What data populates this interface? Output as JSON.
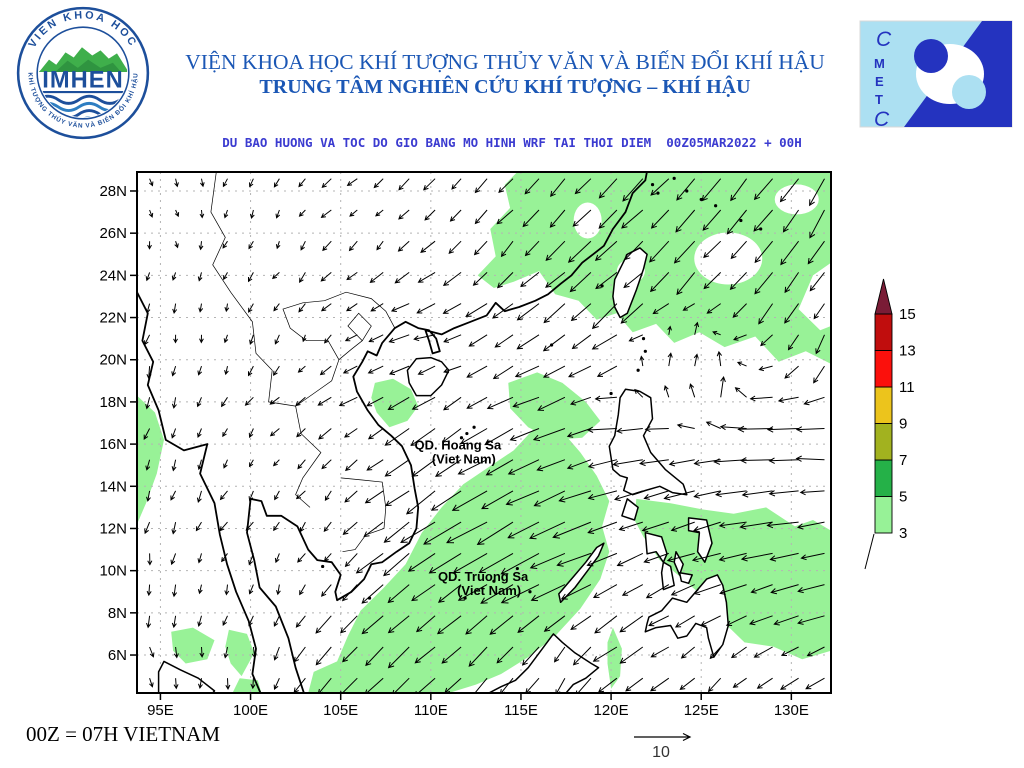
{
  "header": {
    "org_line1": "VIỆN KHOA HỌC KHÍ TƯỢNG THỦY VĂN VÀ BIẾN ĐỔI KHÍ HẬU",
    "org_line2": "TRUNG TÂM NGHIÊN CỨU KHÍ TƯỢNG – KHÍ HẬU",
    "title_color": "#1b57b5"
  },
  "imhen_logo": {
    "acronym": "IMHEN",
    "ring_text_top": "VIEN KHOA HOC",
    "ring_text_bottom": "KHÍ TƯỢNG THỦY VĂN VÀ BIẾN ĐỔI KHÍ HẬU"
  },
  "cmetc_logo": {
    "letters": [
      "C",
      "M",
      "E",
      "T",
      "C"
    ]
  },
  "subtitle": "DU BAO HUONG VA TOC DO GIO BANG MO HINH WRF TAI THOI DIEM  00Z05MAR2022 + 00H",
  "footer": {
    "note": "00Z = 07H VIETNAM",
    "scale_value": "10"
  },
  "chart_data": {
    "type": "map-vector-field",
    "description": "WRF model wind direction & speed forecast over Vietnam / South China Sea",
    "projection": {
      "lon_range": [
        93.7,
        132.2
      ],
      "lat_range": [
        4.2,
        28.9
      ]
    },
    "x_ticks": [
      {
        "lon": 95,
        "label": "95E"
      },
      {
        "lon": 100,
        "label": "100E"
      },
      {
        "lon": 105,
        "label": "105E"
      },
      {
        "lon": 110,
        "label": "110E"
      },
      {
        "lon": 115,
        "label": "115E"
      },
      {
        "lon": 120,
        "label": "120E"
      },
      {
        "lon": 125,
        "label": "125E"
      },
      {
        "lon": 130,
        "label": "130E"
      }
    ],
    "y_ticks": [
      {
        "lat": 28,
        "label": "28N"
      },
      {
        "lat": 26,
        "label": "26N"
      },
      {
        "lat": 24,
        "label": "24N"
      },
      {
        "lat": 22,
        "label": "22N"
      },
      {
        "lat": 20,
        "label": "20N"
      },
      {
        "lat": 18,
        "label": "18N"
      },
      {
        "lat": 16,
        "label": "16N"
      },
      {
        "lat": 14,
        "label": "14N"
      },
      {
        "lat": 12,
        "label": "12N"
      },
      {
        "lat": 10,
        "label": "10N"
      },
      {
        "lat": 8,
        "label": "8N"
      },
      {
        "lat": 6,
        "label": "6N"
      }
    ],
    "grid": "dashed",
    "colorbar": {
      "levels": [
        3,
        5,
        7,
        9,
        11,
        13,
        15
      ],
      "segment_colors_bottom_to_top": [
        "#97f297",
        "#25b148",
        "#a2b21f",
        "#ecc41c",
        "#fb100c",
        "#c00d0d"
      ],
      "over_arrow_color": "#7a1c36"
    },
    "shading_color": "#98f297",
    "annotations": [
      {
        "text": "QD. Hoang Sa",
        "sub": "(Viet Nam)",
        "lon": 111.5,
        "lat": 15.75
      },
      {
        "text": "QD. Truong Sa",
        "sub": "(Viet Nam)",
        "lon": 112.9,
        "lat": 9.5
      }
    ],
    "wind_scale_reference": "10",
    "shaded_regions": [
      {
        "name": "northeast-sea",
        "points": [
          [
            112.6,
            24.0
          ],
          [
            113.6,
            24.9
          ],
          [
            113.3,
            26.2
          ],
          [
            114.4,
            27.2
          ],
          [
            114.1,
            28.3
          ],
          [
            114.8,
            28.9
          ],
          [
            132.2,
            28.9
          ],
          [
            132.2,
            24.6
          ],
          [
            131.2,
            24.0
          ],
          [
            130.4,
            22.4
          ],
          [
            131.6,
            21.4
          ],
          [
            132.2,
            21.6
          ],
          [
            132.2,
            19.8
          ],
          [
            130.8,
            20.4
          ],
          [
            129.3,
            19.9
          ],
          [
            128.0,
            21.1
          ],
          [
            126.3,
            20.6
          ],
          [
            124.9,
            21.3
          ],
          [
            123.5,
            20.8
          ],
          [
            122.5,
            21.7
          ],
          [
            121.2,
            21.3
          ],
          [
            120.3,
            22.2
          ],
          [
            119.2,
            21.9
          ],
          [
            118.2,
            22.8
          ],
          [
            116.9,
            23.1
          ],
          [
            116.0,
            24.2
          ],
          [
            114.6,
            23.7
          ],
          [
            113.5,
            23.4
          ]
        ]
      },
      {
        "name": "southern-south-china-sea",
        "points": [
          [
            103.2,
            4.2
          ],
          [
            103.5,
            5.2
          ],
          [
            104.8,
            5.7
          ],
          [
            105.4,
            6.9
          ],
          [
            106.1,
            8.1
          ],
          [
            107.4,
            9.2
          ],
          [
            108.6,
            10.3
          ],
          [
            109.5,
            11.8
          ],
          [
            110.6,
            13.0
          ],
          [
            111.8,
            14.1
          ],
          [
            113.2,
            14.9
          ],
          [
            114.6,
            15.7
          ],
          [
            115.9,
            16.9
          ],
          [
            117.4,
            16.5
          ],
          [
            118.3,
            15.6
          ],
          [
            119.2,
            14.5
          ],
          [
            119.9,
            13.3
          ],
          [
            119.5,
            12.1
          ],
          [
            119.9,
            10.9
          ],
          [
            119.4,
            9.6
          ],
          [
            118.3,
            8.2
          ],
          [
            116.9,
            6.9
          ],
          [
            115.4,
            5.9
          ],
          [
            113.9,
            5.1
          ],
          [
            112.5,
            4.6
          ],
          [
            111.0,
            4.2
          ]
        ]
      },
      {
        "name": "ne-of-hoang-sa",
        "points": [
          [
            114.3,
            18.9
          ],
          [
            115.9,
            19.4
          ],
          [
            117.3,
            18.9
          ],
          [
            118.6,
            18.0
          ],
          [
            119.4,
            17.1
          ],
          [
            118.4,
            16.3
          ],
          [
            116.8,
            16.2
          ],
          [
            115.4,
            16.8
          ],
          [
            114.4,
            17.7
          ]
        ]
      },
      {
        "name": "central-vietnam-coast",
        "points": [
          [
            106.9,
            18.9
          ],
          [
            107.9,
            19.1
          ],
          [
            108.9,
            18.6
          ],
          [
            109.3,
            17.8
          ],
          [
            108.7,
            17.1
          ],
          [
            107.7,
            16.8
          ],
          [
            107.0,
            17.5
          ],
          [
            106.7,
            18.2
          ]
        ]
      },
      {
        "name": "west-edge",
        "points": [
          [
            93.7,
            18.3
          ],
          [
            94.7,
            17.5
          ],
          [
            95.2,
            16.2
          ],
          [
            94.8,
            14.6
          ],
          [
            94.2,
            13.2
          ],
          [
            93.7,
            12.2
          ]
        ]
      },
      {
        "name": "andaman-blob",
        "points": [
          [
            95.6,
            7.1
          ],
          [
            96.8,
            7.3
          ],
          [
            98.0,
            6.7
          ],
          [
            97.6,
            5.8
          ],
          [
            96.4,
            5.6
          ],
          [
            95.7,
            6.2
          ]
        ]
      },
      {
        "name": "peninsula-blob",
        "points": [
          [
            98.8,
            7.2
          ],
          [
            99.8,
            7.0
          ],
          [
            100.2,
            6.1
          ],
          [
            99.5,
            5.0
          ],
          [
            98.9,
            5.6
          ],
          [
            98.6,
            6.4
          ]
        ]
      },
      {
        "name": "bottom-blob",
        "points": [
          [
            99.0,
            4.2
          ],
          [
            99.4,
            4.9
          ],
          [
            100.4,
            4.8
          ],
          [
            100.6,
            4.2
          ]
        ]
      },
      {
        "name": "east-of-philippines",
        "points": [
          [
            121.4,
            13.4
          ],
          [
            123.3,
            13.2
          ],
          [
            125.1,
            12.9
          ],
          [
            126.8,
            12.7
          ],
          [
            128.6,
            13.0
          ],
          [
            130.2,
            12.1
          ],
          [
            131.2,
            12.4
          ],
          [
            132.2,
            11.9
          ],
          [
            132.2,
            6.2
          ],
          [
            130.6,
            5.8
          ],
          [
            129.0,
            6.4
          ],
          [
            127.4,
            6.6
          ],
          [
            126.2,
            7.6
          ],
          [
            125.2,
            8.7
          ],
          [
            124.0,
            9.6
          ],
          [
            122.7,
            10.5
          ],
          [
            121.8,
            11.6
          ],
          [
            121.3,
            12.4
          ]
        ]
      },
      {
        "name": "sulu-sliver",
        "points": [
          [
            120.1,
            7.3
          ],
          [
            120.6,
            6.3
          ],
          [
            120.5,
            5.0
          ],
          [
            120.0,
            4.4
          ],
          [
            119.8,
            5.6
          ],
          [
            119.8,
            6.6
          ]
        ]
      }
    ],
    "wind_control_points": [
      [
        96,
        27.5,
        300,
        1.5
      ],
      [
        101.5,
        26.5,
        250,
        1.5
      ],
      [
        107,
        27,
        230,
        2
      ],
      [
        112,
        27.5,
        230,
        3
      ],
      [
        117,
        28,
        228,
        4.5
      ],
      [
        122,
        28.2,
        225,
        5.5
      ],
      [
        127,
        28,
        232,
        6
      ],
      [
        131.5,
        27,
        240,
        6
      ],
      [
        114.5,
        25,
        230,
        4
      ],
      [
        119.5,
        25.5,
        225,
        6
      ],
      [
        124,
        24.5,
        228,
        6.5
      ],
      [
        129,
        23.5,
        235,
        5.5
      ],
      [
        131.8,
        21,
        250,
        4
      ],
      [
        117.5,
        23,
        222,
        6
      ],
      [
        120.5,
        22.5,
        222,
        7
      ],
      [
        113.5,
        22,
        215,
        4.5
      ],
      [
        110,
        21,
        195,
        4
      ],
      [
        106.5,
        20.5,
        200,
        2.5
      ],
      [
        103,
        21,
        240,
        1.5
      ],
      [
        97.5,
        21.5,
        270,
        1.5
      ],
      [
        94.5,
        18,
        260,
        2.5
      ],
      [
        96.5,
        15,
        255,
        2
      ],
      [
        100.5,
        15.5,
        240,
        1.5
      ],
      [
        104,
        14,
        235,
        2
      ],
      [
        94.5,
        12,
        260,
        2.5
      ],
      [
        98,
        9.5,
        255,
        2
      ],
      [
        102,
        10,
        250,
        2
      ],
      [
        95,
        5.5,
        285,
        2
      ],
      [
        99.5,
        6,
        275,
        2.2
      ],
      [
        107,
        18.5,
        205,
        4
      ],
      [
        109.5,
        16.5,
        212,
        5.5
      ],
      [
        112,
        17.5,
        215,
        5
      ],
      [
        106,
        15.5,
        220,
        3
      ],
      [
        113.5,
        16,
        208,
        7
      ],
      [
        116.5,
        17.5,
        200,
        6.5
      ],
      [
        119.5,
        20.5,
        212,
        5
      ],
      [
        122.5,
        19,
        75,
        4
      ],
      [
        126,
        18.5,
        80,
        4.5
      ],
      [
        124,
        20.5,
        65,
        3.5
      ],
      [
        128.5,
        16.2,
        182,
        7
      ],
      [
        131.5,
        16,
        178,
        6
      ],
      [
        122,
        15.8,
        188,
        6
      ],
      [
        125,
        14,
        192,
        6.5
      ],
      [
        129,
        12.5,
        188,
        6.5
      ],
      [
        131.8,
        9.5,
        192,
        5.5
      ],
      [
        126.5,
        10.5,
        195,
        6
      ],
      [
        123,
        12,
        200,
        5
      ],
      [
        110.5,
        13.5,
        215,
        8.5
      ],
      [
        113,
        12,
        210,
        9.5
      ],
      [
        116,
        10.5,
        207,
        9
      ],
      [
        118.5,
        12.5,
        200,
        8
      ],
      [
        108,
        10.5,
        218,
        7
      ],
      [
        105.5,
        8,
        228,
        5
      ],
      [
        108.5,
        6,
        225,
        5.5
      ],
      [
        111.5,
        5,
        222,
        5
      ],
      [
        114.5,
        4.8,
        235,
        4.5
      ],
      [
        117.5,
        5.5,
        240,
        4
      ],
      [
        120.5,
        7.5,
        215,
        5.5
      ],
      [
        123.5,
        8,
        210,
        4.5
      ],
      [
        126,
        6,
        230,
        3
      ],
      [
        130,
        5.5,
        210,
        4
      ],
      [
        102,
        12.5,
        245,
        1.8
      ],
      [
        104.5,
        11,
        235,
        2.2
      ],
      [
        112,
        19.5,
        200,
        4
      ],
      [
        121,
        16.8,
        185,
        6
      ]
    ]
  }
}
